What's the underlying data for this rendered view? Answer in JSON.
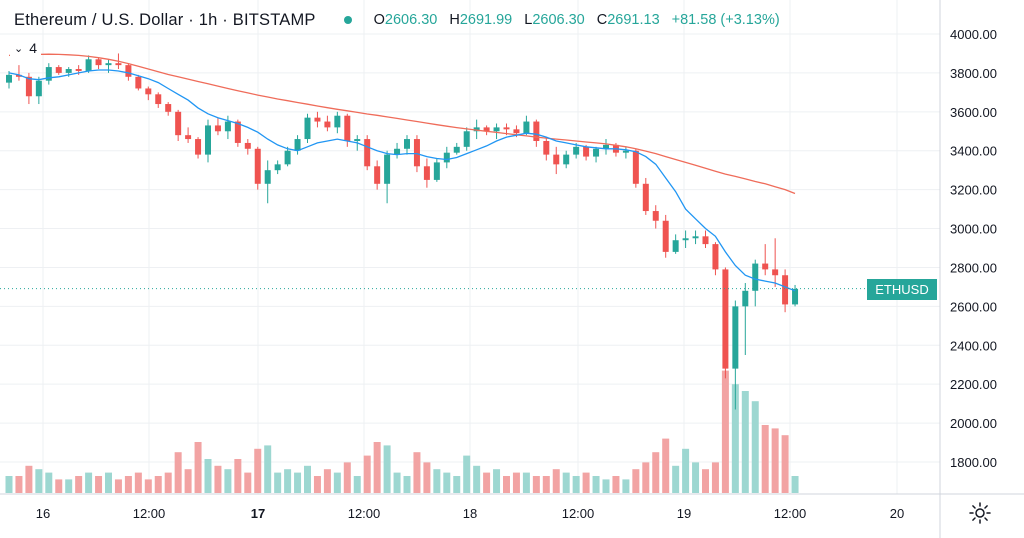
{
  "header": {
    "symbol_title": "Ethereum / U.S. Dollar · 1h · BITSTAMP",
    "open_key": "O",
    "open": "2606.30",
    "high_key": "H",
    "high": "2691.99",
    "low_key": "L",
    "low": "2606.30",
    "close_key": "C",
    "close": "2691.13",
    "change": "+81.58 (+3.13%)"
  },
  "indicator_legend": {
    "count": "4"
  },
  "price_label": "ETHUSD",
  "colors": {
    "up": "#26a69a",
    "down": "#ef5350",
    "vol_up": "#9dd7d1",
    "vol_down": "#f2a3a3",
    "ma_fast": "#2196f3",
    "ma_slow": "#ef6c5a",
    "grid": "#eef0f3",
    "axis_text": "#131722"
  },
  "icons": {
    "settings": "gear-icon",
    "chevron": "chevron-down-icon"
  },
  "chart_data": {
    "type": "candlestick",
    "y_axis": {
      "ticks": [
        "4000.00",
        "3800.00",
        "3600.00",
        "3400.00",
        "3200.00",
        "3000.00",
        "2800.00",
        "2600.00",
        "2400.00",
        "2200.00",
        "2000.00",
        "1800.00"
      ],
      "range": [
        1640,
        4100
      ]
    },
    "x_axis": {
      "labels": [
        "16",
        "12:00",
        "17",
        "12:00",
        "18",
        "12:00",
        "19",
        "12:00",
        "20"
      ]
    },
    "last_price": 2691.13,
    "candles": [
      [
        3750,
        3810,
        3720,
        3790,
        5
      ],
      [
        3790,
        3840,
        3760,
        3780,
        5
      ],
      [
        3780,
        3800,
        3640,
        3680,
        8
      ],
      [
        3680,
        3780,
        3640,
        3760,
        7
      ],
      [
        3760,
        3850,
        3740,
        3830,
        6
      ],
      [
        3830,
        3840,
        3790,
        3800,
        4
      ],
      [
        3800,
        3830,
        3780,
        3820,
        4
      ],
      [
        3820,
        3840,
        3790,
        3810,
        5
      ],
      [
        3810,
        3890,
        3800,
        3870,
        6
      ],
      [
        3870,
        3880,
        3820,
        3840,
        5
      ],
      [
        3840,
        3870,
        3800,
        3850,
        6
      ],
      [
        3850,
        3900,
        3820,
        3840,
        4
      ],
      [
        3840,
        3850,
        3760,
        3780,
        5
      ],
      [
        3780,
        3790,
        3710,
        3720,
        6
      ],
      [
        3720,
        3730,
        3660,
        3690,
        4
      ],
      [
        3690,
        3700,
        3620,
        3640,
        5
      ],
      [
        3640,
        3650,
        3580,
        3600,
        6
      ],
      [
        3600,
        3610,
        3450,
        3480,
        12
      ],
      [
        3480,
        3520,
        3440,
        3460,
        7
      ],
      [
        3460,
        3470,
        3360,
        3380,
        15
      ],
      [
        3380,
        3560,
        3340,
        3530,
        10
      ],
      [
        3530,
        3570,
        3480,
        3500,
        8
      ],
      [
        3500,
        3580,
        3460,
        3550,
        7
      ],
      [
        3550,
        3560,
        3420,
        3440,
        10
      ],
      [
        3440,
        3460,
        3380,
        3410,
        6
      ],
      [
        3410,
        3420,
        3200,
        3230,
        13
      ],
      [
        3230,
        3350,
        3130,
        3300,
        14
      ],
      [
        3300,
        3350,
        3280,
        3330,
        6
      ],
      [
        3330,
        3420,
        3320,
        3400,
        7
      ],
      [
        3400,
        3480,
        3380,
        3460,
        6
      ],
      [
        3460,
        3590,
        3440,
        3570,
        8
      ],
      [
        3570,
        3600,
        3520,
        3550,
        5
      ],
      [
        3550,
        3580,
        3500,
        3520,
        7
      ],
      [
        3520,
        3600,
        3490,
        3580,
        6
      ],
      [
        3580,
        3590,
        3420,
        3450,
        9
      ],
      [
        3450,
        3480,
        3400,
        3460,
        5
      ],
      [
        3460,
        3480,
        3300,
        3320,
        11
      ],
      [
        3320,
        3350,
        3200,
        3230,
        15
      ],
      [
        3230,
        3400,
        3130,
        3380,
        14
      ],
      [
        3380,
        3440,
        3360,
        3410,
        6
      ],
      [
        3410,
        3480,
        3380,
        3460,
        5
      ],
      [
        3460,
        3480,
        3290,
        3320,
        12
      ],
      [
        3320,
        3360,
        3210,
        3250,
        9
      ],
      [
        3250,
        3360,
        3240,
        3340,
        7
      ],
      [
        3340,
        3420,
        3310,
        3390,
        6
      ],
      [
        3390,
        3440,
        3380,
        3420,
        5
      ],
      [
        3420,
        3520,
        3400,
        3500,
        11
      ],
      [
        3500,
        3560,
        3460,
        3520,
        8
      ],
      [
        3520,
        3530,
        3480,
        3500,
        6
      ],
      [
        3500,
        3540,
        3460,
        3520,
        7
      ],
      [
        3520,
        3540,
        3480,
        3510,
        5
      ],
      [
        3510,
        3530,
        3470,
        3490,
        6
      ],
      [
        3490,
        3580,
        3480,
        3550,
        6
      ],
      [
        3550,
        3560,
        3420,
        3450,
        5
      ],
      [
        3450,
        3470,
        3350,
        3380,
        5
      ],
      [
        3380,
        3420,
        3280,
        3330,
        7
      ],
      [
        3330,
        3400,
        3310,
        3380,
        6
      ],
      [
        3380,
        3440,
        3360,
        3420,
        5
      ],
      [
        3420,
        3430,
        3350,
        3370,
        6
      ],
      [
        3370,
        3420,
        3340,
        3410,
        5
      ],
      [
        3410,
        3460,
        3380,
        3430,
        4
      ],
      [
        3430,
        3440,
        3370,
        3390,
        5
      ],
      [
        3390,
        3420,
        3360,
        3400,
        4
      ],
      [
        3400,
        3410,
        3210,
        3230,
        7
      ],
      [
        3230,
        3260,
        3070,
        3090,
        9
      ],
      [
        3090,
        3120,
        3000,
        3040,
        12
      ],
      [
        3040,
        3070,
        2850,
        2880,
        16
      ],
      [
        2880,
        2970,
        2870,
        2940,
        8
      ],
      [
        2940,
        2990,
        2900,
        2950,
        13
      ],
      [
        2950,
        2990,
        2920,
        2960,
        9
      ],
      [
        2960,
        2990,
        2900,
        2920,
        7
      ],
      [
        2920,
        2930,
        2760,
        2790,
        9
      ],
      [
        2790,
        2800,
        2230,
        2280,
        36
      ],
      [
        2280,
        2630,
        2070,
        2600,
        32
      ],
      [
        2600,
        2720,
        2350,
        2680,
        30
      ],
      [
        2680,
        2840,
        2600,
        2820,
        27
      ],
      [
        2820,
        2920,
        2760,
        2790,
        20
      ],
      [
        2790,
        2950,
        2700,
        2760,
        19
      ],
      [
        2760,
        2790,
        2570,
        2610,
        17
      ],
      [
        2610,
        2710,
        2600,
        2690,
        5
      ]
    ],
    "ma_fast": [
      3800,
      3790,
      3770,
      3765,
      3775,
      3780,
      3790,
      3800,
      3810,
      3815,
      3815,
      3810,
      3800,
      3785,
      3770,
      3750,
      3720,
      3690,
      3660,
      3620,
      3590,
      3570,
      3555,
      3540,
      3520,
      3495,
      3460,
      3430,
      3410,
      3400,
      3420,
      3440,
      3450,
      3460,
      3450,
      3440,
      3420,
      3400,
      3385,
      3380,
      3385,
      3385,
      3370,
      3360,
      3355,
      3365,
      3385,
      3405,
      3425,
      3450,
      3470,
      3480,
      3490,
      3485,
      3470,
      3450,
      3440,
      3430,
      3420,
      3415,
      3410,
      3410,
      3405,
      3395,
      3370,
      3330,
      3260,
      3190,
      3100,
      3050,
      3000,
      2960,
      2880,
      2810,
      2760,
      2740,
      2730,
      2720,
      2700,
      2680
    ],
    "ma_slow": [
      3890,
      3892,
      3894,
      3895,
      3896,
      3895,
      3893,
      3890,
      3885,
      3878,
      3870,
      3860,
      3848,
      3834,
      3820,
      3806,
      3792,
      3780,
      3768,
      3756,
      3744,
      3732,
      3720,
      3708,
      3697,
      3686,
      3676,
      3666,
      3657,
      3648,
      3639,
      3630,
      3621,
      3613,
      3605,
      3597,
      3589,
      3582,
      3574,
      3566,
      3558,
      3550,
      3542,
      3534,
      3526,
      3519,
      3512,
      3506,
      3500,
      3494,
      3488,
      3482,
      3476,
      3470,
      3465,
      3460,
      3455,
      3450,
      3445,
      3440,
      3435,
      3428,
      3420,
      3410,
      3398,
      3385,
      3370,
      3355,
      3340,
      3325,
      3310,
      3295,
      3280,
      3268,
      3255,
      3242,
      3230,
      3215,
      3200,
      3180
    ]
  }
}
